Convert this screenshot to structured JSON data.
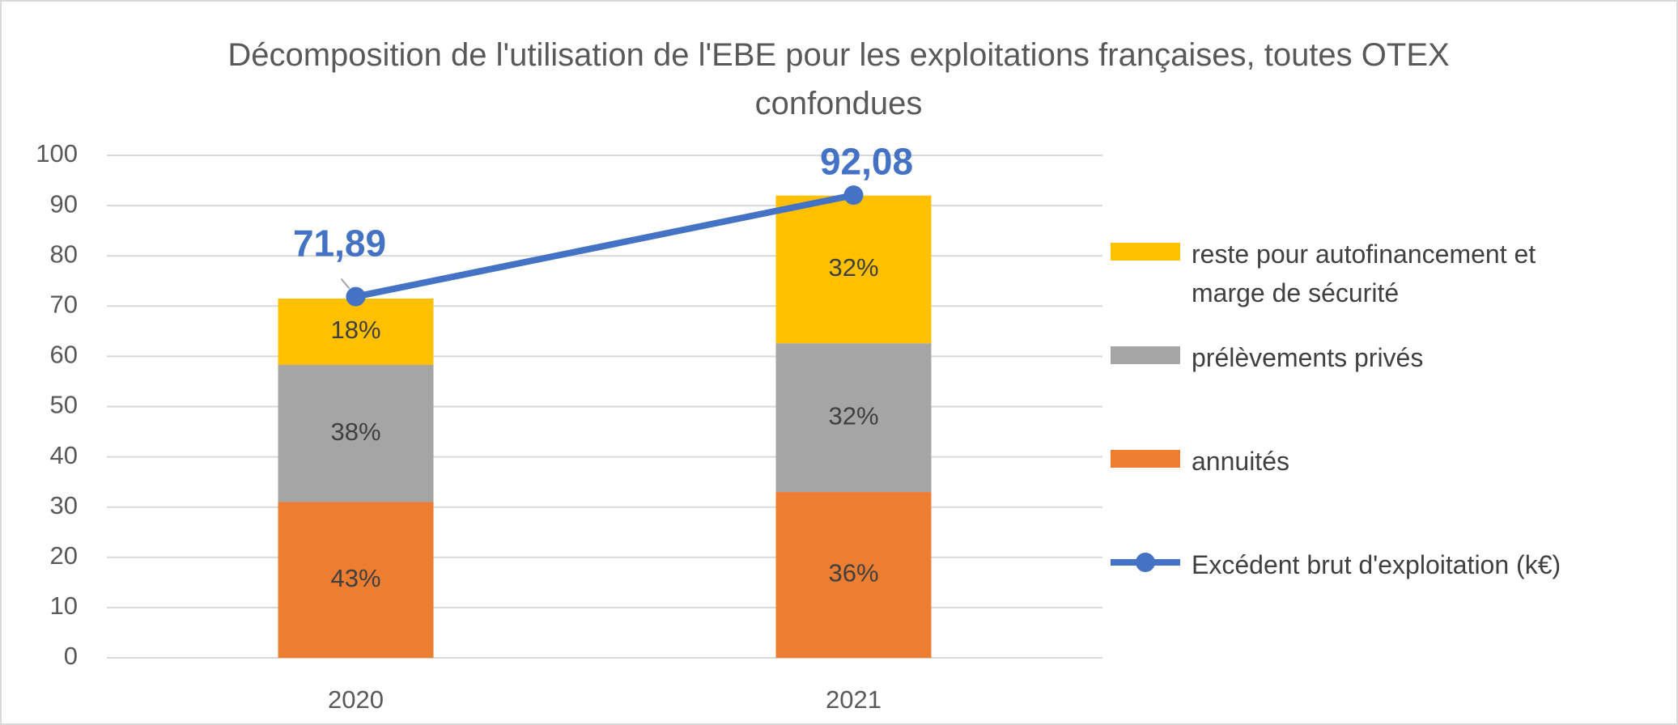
{
  "chart_data": {
    "type": "bar",
    "title": "Décomposition de l'utilisation de l'EBE pour les exploitations françaises, toutes OTEX confondues",
    "categories": [
      "2020",
      "2021"
    ],
    "series": [
      {
        "name": "annuités",
        "type": "bar",
        "color": "#ED7D31",
        "values": [
          31,
          33
        ],
        "value_labels": [
          "43%",
          "36%"
        ]
      },
      {
        "name": "prélèvements privés",
        "type": "bar",
        "color": "#A5A5A5",
        "values": [
          27.3,
          29.6
        ],
        "value_labels": [
          "38%",
          "32%"
        ]
      },
      {
        "name": "reste pour autofinancement et marge de sécurité",
        "type": "bar",
        "color": "#FFC000",
        "values": [
          13.2,
          29.4
        ],
        "value_labels": [
          "18%",
          "32%"
        ]
      },
      {
        "name": "Excédent brut d'exploitation (k€)",
        "type": "line",
        "color": "#4472C4",
        "values": [
          71.89,
          92.08
        ],
        "value_labels": [
          "71,89",
          "92,08"
        ]
      }
    ],
    "stacked": true,
    "ylim": [
      0,
      100
    ],
    "yticks": [
      0,
      10,
      20,
      30,
      40,
      50,
      60,
      70,
      80,
      90,
      100
    ],
    "grid": true,
    "legend": "right"
  }
}
